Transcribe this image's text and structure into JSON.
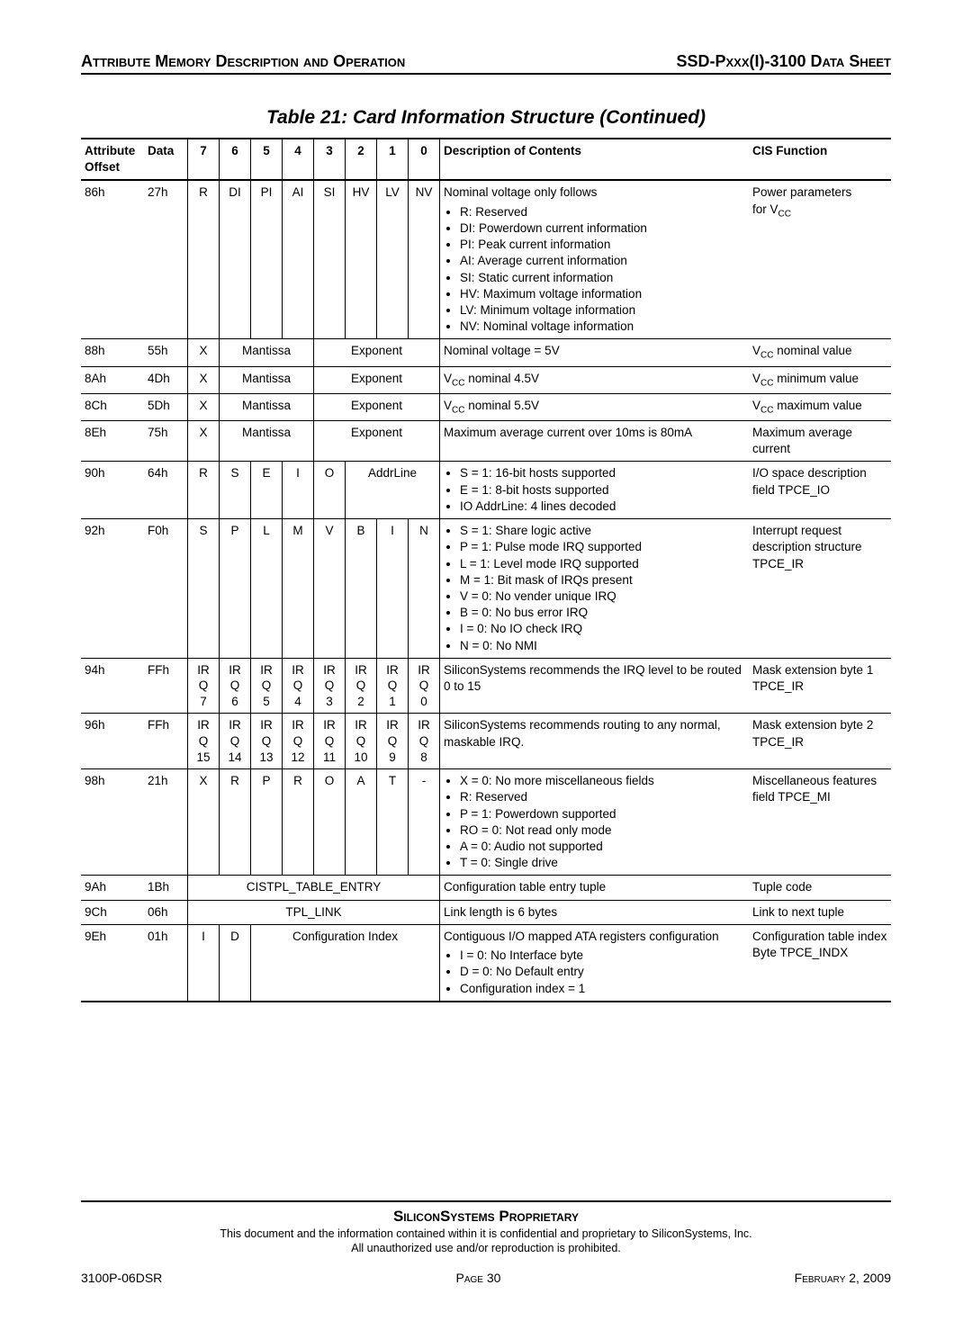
{
  "header": {
    "left": "Attribute Memory Description and Operation",
    "right": "SSD-Pxxx(I)-3100 Data Sheet"
  },
  "title": "Table 21:  Card Information Structure (Continued)",
  "columns": {
    "offset": "Attribute Offset",
    "data": "Data",
    "bits": [
      "7",
      "6",
      "5",
      "4",
      "3",
      "2",
      "1",
      "0"
    ],
    "desc": "Description of Contents",
    "cis": "CIS Function"
  },
  "rows": {
    "r86": {
      "offset": "86h",
      "data": "27h",
      "bits": [
        "R",
        "DI",
        "PI",
        "AI",
        "SI",
        "HV",
        "LV",
        "NV"
      ],
      "desc_lead": "Nominal voltage only follows",
      "bullets": [
        "R: Reserved",
        "DI: Powerdown current information",
        "PI: Peak current information",
        "AI: Average current information",
        "SI: Static current information",
        "HV: Maximum voltage information",
        "LV: Minimum voltage information",
        "NV: Nominal voltage information"
      ],
      "cis_a": "Power parameters",
      "cis_b": "for V",
      "cis_sub": "CC"
    },
    "r88": {
      "offset": "88h",
      "data": "55h",
      "b7": "X",
      "m": "Mantissa",
      "e": "Exponent",
      "desc": "Nominal voltage = 5V",
      "cis_pre": "V",
      "cis_sub": "CC",
      "cis_post": " nominal value"
    },
    "r8A": {
      "offset": "8Ah",
      "data": "4Dh",
      "b7": "X",
      "m": "Mantissa",
      "e": "Exponent",
      "desc_pre": "V",
      "desc_sub": "CC",
      "desc_post": " nominal 4.5V",
      "cis_pre": "V",
      "cis_sub": "CC",
      "cis_post": " minimum value"
    },
    "r8C": {
      "offset": "8Ch",
      "data": "5Dh",
      "b7": "X",
      "m": "Mantissa",
      "e": "Exponent",
      "desc_pre": "V",
      "desc_sub": "CC",
      "desc_post": " nominal 5.5V",
      "cis_pre": "V",
      "cis_sub": "CC",
      "cis_post": " maximum value"
    },
    "r8E": {
      "offset": "8Eh",
      "data": "75h",
      "b7": "X",
      "m": "Mantissa",
      "e": "Exponent",
      "desc": "Maximum average current over 10ms is 80mA",
      "cis": "Maximum average current"
    },
    "r90": {
      "offset": "90h",
      "data": "64h",
      "bits": [
        "R",
        "S",
        "E",
        "I",
        "O"
      ],
      "addr": "AddrLine",
      "bullets": [
        "S = 1: 16-bit hosts supported",
        "E = 1: 8-bit hosts supported",
        "IO AddrLine: 4 lines decoded"
      ],
      "cis": "I/O space description field TPCE_IO"
    },
    "r92": {
      "offset": "92h",
      "data": "F0h",
      "bits": [
        "S",
        "P",
        "L",
        "M",
        "V",
        "B",
        "I",
        "N"
      ],
      "bullets": [
        "S = 1: Share logic active",
        "P = 1: Pulse mode IRQ supported",
        "L = 1: Level mode IRQ supported",
        "M = 1: Bit mask of IRQs present",
        "V = 0: No vender unique IRQ",
        "B = 0: No bus error IRQ",
        "I = 0: No IO check IRQ",
        "N = 0: No NMI"
      ],
      "cis": "Interrupt request description structure TPCE_IR"
    },
    "r94": {
      "offset": "94h",
      "data": "FFh",
      "stacks": [
        "IR Q 7",
        "IR Q 6",
        "IR Q 5",
        "IR Q 4",
        "IR Q 3",
        "IR Q 2",
        "IR Q 1",
        "IR Q 0"
      ],
      "desc": "SiliconSystems recommends the IRQ level to be routed 0 to 15",
      "cis": "Mask extension byte 1 TPCE_IR"
    },
    "r96": {
      "offset": "96h",
      "data": "FFh",
      "stacks": [
        "IR Q 15",
        "IR Q 14",
        "IR Q 13",
        "IR Q 12",
        "IR Q 11",
        "IR Q 10",
        "IR Q 9",
        "IR Q 8"
      ],
      "desc": "SiliconSystems recommends routing to any normal, maskable IRQ.",
      "cis": "Mask extension byte 2 TPCE_IR"
    },
    "r98": {
      "offset": "98h",
      "data": "21h",
      "bits": [
        "X",
        "R",
        "P",
        "R",
        "O",
        "A",
        "T",
        "-"
      ],
      "bullets": [
        "X = 0: No more miscellaneous fields",
        "R: Reserved",
        "P = 1: Powerdown supported",
        "RO = 0: Not read only mode",
        "A = 0: Audio not supported",
        "T = 0: Single drive"
      ],
      "cis": "Miscellaneous features field TPCE_MI"
    },
    "r9A": {
      "offset": "9Ah",
      "data": "1Bh",
      "span": "CISTPL_TABLE_ENTRY",
      "desc": "Configuration table entry tuple",
      "cis": "Tuple code"
    },
    "r9C": {
      "offset": "9Ch",
      "data": "06h",
      "span": "TPL_LINK",
      "desc": "Link length is 6 bytes",
      "cis": "Link to next tuple"
    },
    "r9E": {
      "offset": "9Eh",
      "data": "01h",
      "b7": "I",
      "b6": "D",
      "span": "Configuration Index",
      "desc_lead": "Contiguous I/O mapped ATA registers configuration",
      "bullets": [
        "I = 0: No Interface byte",
        "D = 0: No Default entry",
        "Configuration index = 1"
      ],
      "cis": "Configuration table index\nByte TPCE_INDX"
    }
  },
  "footer": {
    "prop": "SiliconSystems Proprietary",
    "line1": "This document and the information contained within it is confidential and proprietary to SiliconSystems, Inc.",
    "line2": "All unauthorized use and/or reproduction is prohibited.",
    "left": "3100P-06DSR",
    "center_a": "Page ",
    "center_b": "30",
    "right_a": "February ",
    "right_b": "2, 2009"
  }
}
